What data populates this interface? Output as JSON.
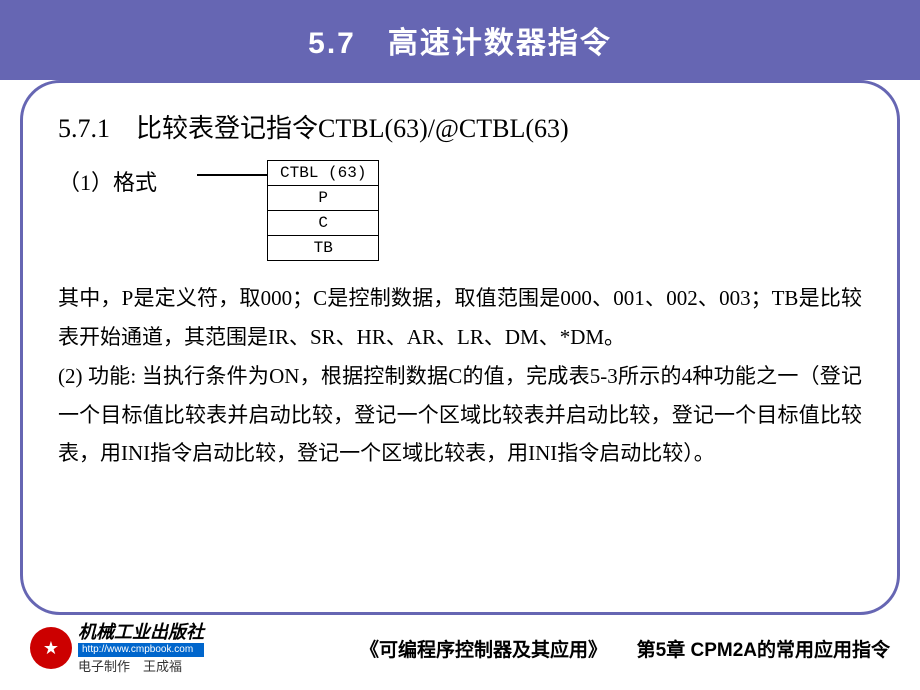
{
  "title": "5.7　高速计数器指令",
  "subtitle": "5.7.1　比较表登记指令CTBL(63)/@CTBL(63)",
  "format_label": "（1）格式",
  "diagram": {
    "rows": [
      "CTBL (63)",
      "P",
      "C",
      "TB"
    ]
  },
  "paragraph1": "其中，P是定义符，取000；C是控制数据，取值范围是000、001、002、003；TB是比较表开始通道，其范围是IR、SR、HR、AR、LR、DM、*DM。",
  "paragraph2": "(2) 功能: 当执行条件为ON，根据控制数据C的值，完成表5-3所示的4种功能之一（登记一个目标值比较表并启动比较，登记一个区域比较表并启动比较，登记一个目标值比较表，用INI指令启动比较，登记一个区域比较表，用INI指令启动比较）。",
  "footer": {
    "publisher": "机械工业出版社",
    "url": "http://www.cmpbook.com",
    "credit": "电子制作　王成福",
    "book_title": "《可编程序控制器及其应用》",
    "chapter": "第5章  CPM2A的常用应用指令"
  },
  "colors": {
    "title_bg": "#6666b3",
    "title_text": "#ffffff",
    "border": "#6666b3",
    "logo_red": "#cc0000",
    "url_bg": "#0066cc"
  }
}
